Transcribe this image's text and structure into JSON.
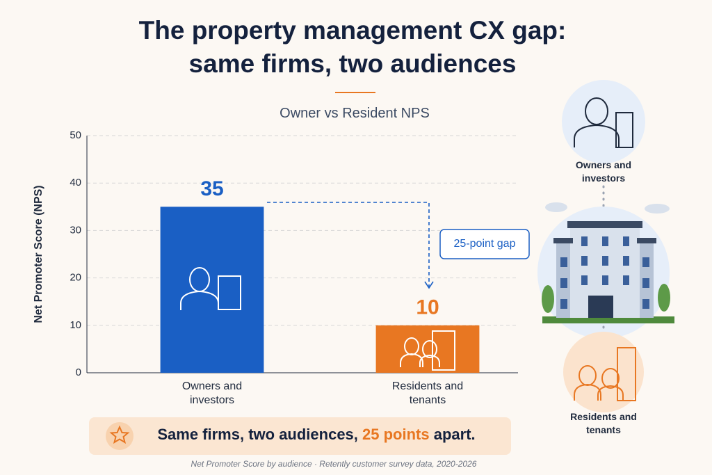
{
  "chart_data": {
    "type": "bar",
    "title": "The property management CX gap: same firms, two audiences",
    "subtitle": "Owner vs Resident NPS",
    "y_label": "Net Promoter Score (NPS)",
    "categories": [
      "Owners and investors",
      "Residents and tenants"
    ],
    "values": [
      35,
      10
    ],
    "colors": [
      "#1a5fc4",
      "#e87722"
    ],
    "ylim": [
      0,
      50
    ],
    "yticks": [
      0,
      10,
      20,
      30,
      40,
      50
    ],
    "grid": true,
    "gap_annotation": "25-point gap",
    "callout": [
      "Same firms, two audiences, ",
      "25 points",
      " apart."
    ],
    "footnote": "Net Promoter Score by audience · Retently customer survey data, 2020-2026"
  }
}
